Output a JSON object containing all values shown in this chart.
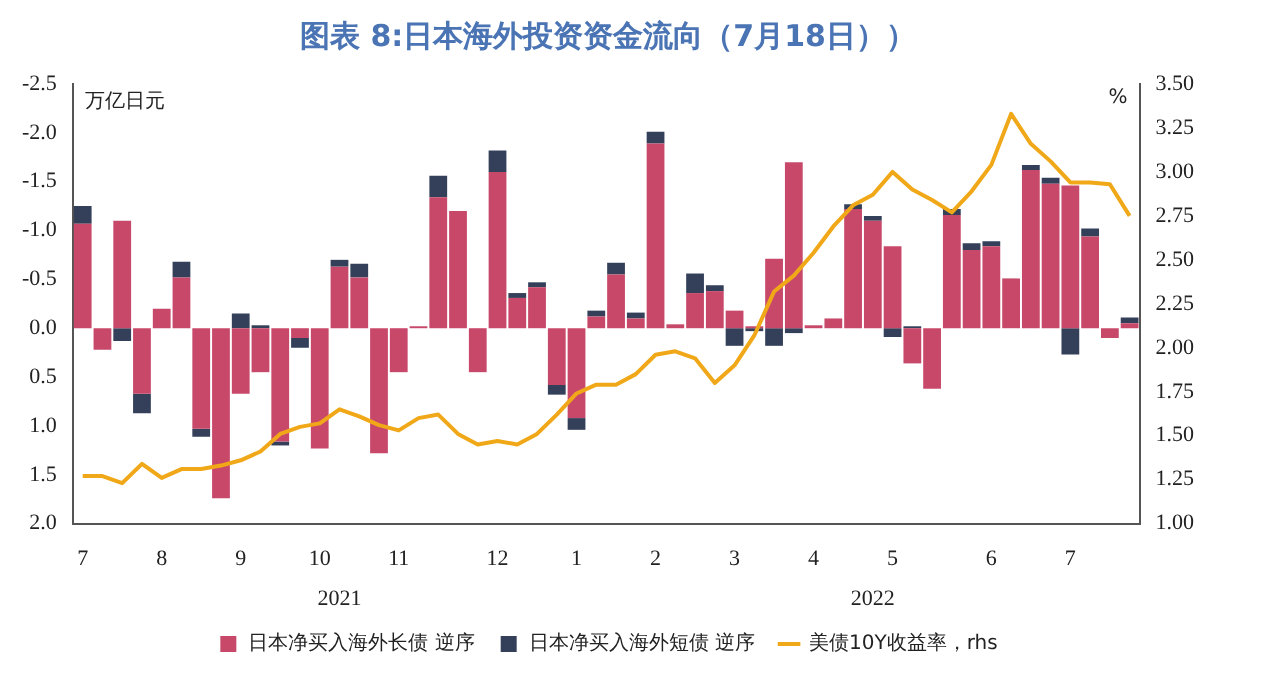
{
  "chart_data": {
    "type": "bar",
    "title": "图表 8:日本海外投资资金流向（7月18日））",
    "ylabel": "万亿日元",
    "y2label": "%",
    "categories": [
      "7",
      null,
      null,
      null,
      "8",
      null,
      null,
      null,
      "9",
      null,
      null,
      null,
      "10",
      null,
      null,
      null,
      "11",
      null,
      null,
      null,
      null,
      "12",
      null,
      null,
      null,
      "1",
      null,
      null,
      null,
      "2",
      null,
      null,
      null,
      "3",
      null,
      null,
      null,
      "4",
      null,
      null,
      null,
      "5",
      null,
      null,
      null,
      null,
      "6",
      null,
      null,
      null,
      "7",
      null,
      null,
      null
    ],
    "annotations": [
      "2021",
      "2022"
    ],
    "stacked": true,
    "legend": "bottom",
    "grid": false,
    "ylim": [
      2.0,
      -2.5
    ],
    "yticks": [
      {
        "value": -2.5,
        "label": "-2.5"
      },
      {
        "value": -2,
        "label": "-2.0"
      },
      {
        "value": -1.5,
        "label": "-1.5"
      },
      {
        "value": -1,
        "label": "-1.0"
      },
      {
        "value": -0.5,
        "label": "-0.5"
      },
      {
        "value": 0,
        "label": "0.0"
      },
      {
        "value": 0.5,
        "label": "0.5"
      },
      {
        "value": 1,
        "label": "1.0"
      },
      {
        "value": 1.5,
        "label": "1.5"
      },
      {
        "value": 2,
        "label": "2.0"
      }
    ],
    "y2lim": [
      1.0,
      3.5
    ],
    "y2ticks": [
      {
        "value": 1,
        "label": "1.00"
      },
      {
        "value": 1.25,
        "label": "1.25"
      },
      {
        "value": 1.5,
        "label": "1.50"
      },
      {
        "value": 1.75,
        "label": "1.75"
      },
      {
        "value": 2,
        "label": "2.00"
      },
      {
        "value": 2.25,
        "label": "2.25"
      },
      {
        "value": 2.5,
        "label": "2.50"
      },
      {
        "value": 2.75,
        "label": "2.75"
      },
      {
        "value": 3,
        "label": "3.00"
      },
      {
        "value": 3.25,
        "label": "3.25"
      },
      {
        "value": 3.5,
        "label": "3.50"
      }
    ],
    "series": [
      {
        "name": "日本净买入海外长债 逆序",
        "color": "#c8486a",
        "values": [
          -1.07,
          0.22,
          -1.1,
          0.67,
          -0.2,
          -0.52,
          1.03,
          1.74,
          0.67,
          0.45,
          1.16,
          0.1,
          1.23,
          -0.63,
          -0.52,
          1.28,
          0.45,
          -0.02,
          -1.34,
          -1.2,
          0.45,
          -1.6,
          -0.31,
          -0.42,
          0.58,
          0.92,
          -0.12,
          -0.55,
          -0.1,
          -1.89,
          -0.04,
          -0.36,
          -0.38,
          -0.18,
          -0.02,
          -0.71,
          -1.7,
          -0.03,
          -0.1,
          -1.22,
          -1.1,
          -0.84,
          0.36,
          0.62,
          -1.16,
          -0.8,
          -0.84,
          -0.51,
          -1.62,
          -1.48,
          -1.46,
          -0.94,
          0.1,
          -0.05
        ]
      },
      {
        "name": "日本净买入海外短债 逆序",
        "color": "#34405a",
        "values": [
          -0.18,
          0,
          0.13,
          0.2,
          0,
          -0.16,
          0.08,
          0,
          -0.15,
          -0.03,
          0.04,
          0.1,
          0,
          -0.07,
          -0.14,
          0,
          0,
          0,
          -0.22,
          0,
          0,
          -0.22,
          -0.05,
          -0.05,
          0.1,
          0.12,
          -0.06,
          -0.12,
          -0.06,
          -0.12,
          0,
          -0.2,
          -0.06,
          0.18,
          0.03,
          0.18,
          0.05,
          0,
          0,
          -0.05,
          -0.05,
          0.09,
          -0.02,
          0,
          -0.06,
          -0.07,
          -0.05,
          0,
          -0.05,
          -0.06,
          0.27,
          -0.08,
          0,
          -0.06
        ]
      },
      {
        "name": "美债10Y收益率，rhs",
        "type": "line",
        "axis": "y2",
        "color": "#f0a818",
        "values": [
          1.27,
          1.27,
          1.23,
          1.34,
          1.26,
          1.31,
          1.31,
          1.33,
          1.36,
          1.41,
          1.51,
          1.55,
          1.57,
          1.65,
          1.61,
          1.56,
          1.53,
          1.6,
          1.62,
          1.51,
          1.45,
          1.47,
          1.45,
          1.51,
          1.62,
          1.74,
          1.79,
          1.79,
          1.85,
          1.96,
          1.98,
          1.94,
          1.8,
          1.9,
          2.07,
          2.32,
          2.41,
          2.54,
          2.69,
          2.81,
          2.87,
          3.0,
          2.9,
          2.84,
          2.77,
          2.89,
          3.04,
          3.33,
          3.16,
          3.06,
          2.94,
          2.94,
          2.93,
          2.75
        ]
      }
    ]
  }
}
